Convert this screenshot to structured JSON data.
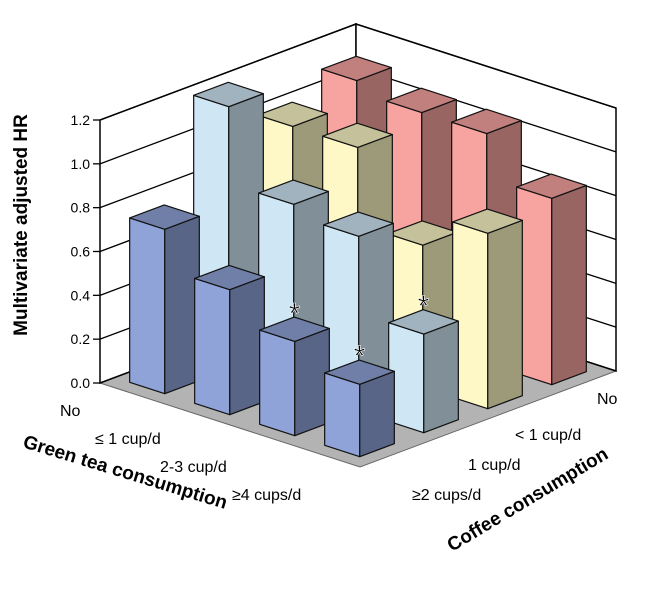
{
  "chart_data": {
    "type": "bar3d",
    "title": "",
    "zlabel": "Multivariate adjusted HR",
    "xlabel": "Green tea consumption",
    "ylabel": "Coffee consumption",
    "zlim": [
      0,
      1.2
    ],
    "zticks": [
      "0.0",
      "0.2",
      "0.4",
      "0.6",
      "0.8",
      "1.0",
      "1.2"
    ],
    "green_tea_categories": [
      "No",
      "≤ 1 cup/d",
      "2-3 cup/d",
      "≥4 cups/d"
    ],
    "coffee_categories": [
      "No",
      "< 1 cup/d",
      "1 cup/d",
      "≥2 cups/d"
    ],
    "grid": true,
    "series": [
      {
        "name": "No",
        "color": "#f7a3a0",
        "values": [
          1.1,
          1.05,
          1.05,
          0.85
        ],
        "significant": [
          false,
          false,
          false,
          false
        ]
      },
      {
        "name": "< 1 cup/d",
        "color": "#fdf8c5",
        "values": [
          1.0,
          1.0,
          0.65,
          0.8
        ],
        "significant": [
          false,
          false,
          false,
          false
        ]
      },
      {
        "name": "1 cup/d",
        "color": "#cfe6f5",
        "values": [
          1.2,
          0.85,
          0.8,
          0.45
        ],
        "significant": [
          false,
          false,
          false,
          true
        ]
      },
      {
        "name": "≥2 cups/d",
        "color": "#8fa3d8",
        "values": [
          0.75,
          0.57,
          0.43,
          0.33
        ],
        "significant": [
          false,
          false,
          true,
          true
        ]
      }
    ],
    "significance_marker": "*"
  }
}
